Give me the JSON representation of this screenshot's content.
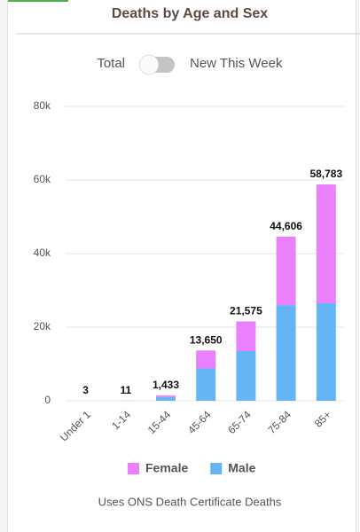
{
  "chart_data": {
    "type": "stacked_bar",
    "title": "Deaths by Age and Sex",
    "toggle": {
      "left": "Total",
      "right": "New This Week"
    },
    "categories": [
      "Under 1",
      "1-14",
      "15-44",
      "45-64",
      "65-74",
      "75-84",
      "85+"
    ],
    "series": [
      {
        "name": "Male",
        "color": "#64b5f6",
        "values": [
          2,
          6,
          1000,
          8800,
          13500,
          26000,
          26500
        ]
      },
      {
        "name": "Female",
        "color": "#ea80fc",
        "values": [
          1,
          5,
          433,
          4850,
          8075,
          18606,
          32283
        ]
      }
    ],
    "totals": {
      "values": [
        3,
        11,
        1433,
        13650,
        21575,
        44606,
        58783
      ],
      "value_labels": [
        "3",
        "11",
        "1,433",
        "13,650",
        "21,575",
        "44,606",
        "58,783"
      ]
    },
    "ylim": [
      0,
      80000
    ],
    "yticks": [
      0,
      {
        "value": 20000,
        "label": "20k"
      },
      {
        "value": 40000,
        "label": "40k"
      },
      {
        "value": 60000,
        "label": "60k"
      },
      {
        "value": 80000,
        "label": "80k"
      }
    ],
    "grid": true,
    "legend_order": [
      1,
      0
    ],
    "footnote": "Uses ONS Death Certificate Deaths"
  }
}
